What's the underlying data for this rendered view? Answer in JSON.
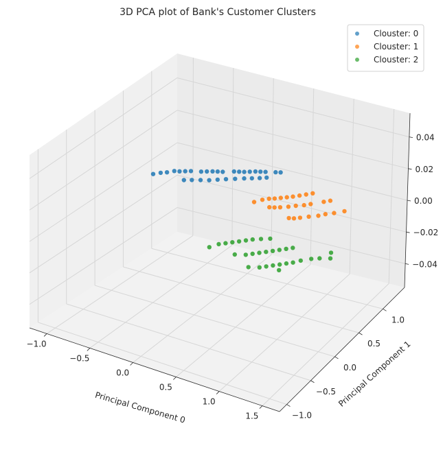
{
  "chart_data": {
    "type": "scatter",
    "projection": "3d",
    "title": "3D PCA plot of Bank's Customer Clusters",
    "xlabel": "Principal Component 0",
    "ylabel": "Principal Component 1",
    "zlabel": "",
    "xlim": [
      -1.2,
      1.7
    ],
    "ylim": [
      -1.15,
      1.45
    ],
    "zlim": [
      -0.055,
      0.055
    ],
    "xticks": [
      "−1.0",
      "−0.5",
      "0.0",
      "0.5",
      "1.0",
      "1.5"
    ],
    "yticks": [
      "−1.0",
      "−0.5",
      "0.0",
      "0.5",
      "1.0"
    ],
    "zticks": [
      "−0.04",
      "−0.02",
      "0.00",
      "0.02",
      "0.04"
    ],
    "grid": true,
    "legend_position": "top-right",
    "series": [
      {
        "name": "Clouster: 0",
        "color": "#1f77b4",
        "points": [
          [
            -0.85,
            0.9,
            0
          ],
          [
            -0.8,
            0.92,
            0
          ],
          [
            -0.75,
            0.95,
            0
          ],
          [
            -0.7,
            0.98,
            0
          ],
          [
            -0.6,
            1.02,
            0
          ],
          [
            -0.55,
            1.05,
            0
          ],
          [
            -0.5,
            1.08,
            0
          ],
          [
            -0.45,
            1.1,
            0
          ],
          [
            -0.4,
            1.12,
            0
          ],
          [
            -0.3,
            1.18,
            0
          ],
          [
            -0.25,
            1.2,
            0
          ],
          [
            -0.2,
            1.22,
            0
          ],
          [
            -0.15,
            1.25,
            0
          ],
          [
            -0.1,
            1.28,
            0
          ],
          [
            -0.05,
            1.3,
            0
          ],
          [
            0.0,
            1.32,
            0
          ],
          [
            0.1,
            1.36,
            0
          ],
          [
            0.15,
            1.38,
            0
          ],
          [
            -0.65,
            0.78,
            0
          ],
          [
            -0.58,
            0.82,
            0
          ],
          [
            -0.5,
            0.86,
            0
          ],
          [
            -0.42,
            0.9,
            0
          ],
          [
            -0.35,
            0.95,
            0
          ],
          [
            -0.28,
            1.0,
            0
          ],
          [
            -0.2,
            1.05,
            0
          ],
          [
            -0.12,
            1.1,
            0
          ],
          [
            -0.05,
            1.14,
            0
          ],
          [
            0.02,
            1.18,
            0
          ],
          [
            0.08,
            1.22,
            0
          ],
          [
            -0.95,
            0.8,
            0
          ],
          [
            -0.9,
            0.84,
            0
          ],
          [
            -1.0,
            0.74,
            0
          ]
        ]
      },
      {
        "name": "Clouster: 1",
        "color": "#ff7f0e",
        "points": [
          [
            0.3,
            0.8,
            0
          ],
          [
            0.35,
            0.85,
            0
          ],
          [
            0.4,
            0.88,
            0
          ],
          [
            0.45,
            0.92,
            0
          ],
          [
            0.5,
            0.96,
            0
          ],
          [
            0.55,
            1.0,
            0
          ],
          [
            0.65,
            1.1,
            0
          ],
          [
            0.7,
            1.15,
            0
          ],
          [
            0.45,
            0.7,
            0
          ],
          [
            0.5,
            0.72,
            0
          ],
          [
            0.55,
            0.75,
            0
          ],
          [
            0.62,
            0.8,
            0
          ],
          [
            0.68,
            0.85,
            0
          ],
          [
            0.75,
            0.9,
            0
          ],
          [
            0.8,
            0.95,
            0
          ],
          [
            0.9,
            1.05,
            0
          ],
          [
            0.75,
            0.6,
            0
          ],
          [
            0.8,
            0.62,
            0
          ],
          [
            0.85,
            0.66,
            0
          ],
          [
            0.92,
            0.72,
            0
          ],
          [
            1.0,
            0.78,
            0
          ],
          [
            1.05,
            0.84,
            0
          ],
          [
            1.12,
            0.9,
            0
          ],
          [
            1.2,
            0.98,
            0
          ],
          [
            0.25,
            0.72,
            0
          ],
          [
            0.6,
            1.05,
            0
          ],
          [
            0.95,
            1.1,
            0
          ]
        ]
      },
      {
        "name": "Clouster: 2",
        "color": "#2ca02c",
        "points": [
          [
            0.4,
            -0.2,
            0
          ],
          [
            0.45,
            -0.15,
            0
          ],
          [
            0.5,
            -0.1,
            0
          ],
          [
            0.55,
            -0.05,
            0
          ],
          [
            0.6,
            0.0,
            0
          ],
          [
            0.65,
            0.05,
            0
          ],
          [
            0.72,
            0.1,
            0
          ],
          [
            0.8,
            0.15,
            0
          ],
          [
            0.75,
            -0.25,
            0
          ],
          [
            0.8,
            -0.2,
            0
          ],
          [
            0.85,
            -0.15,
            0
          ],
          [
            0.9,
            -0.1,
            0
          ],
          [
            0.95,
            -0.05,
            0
          ],
          [
            1.0,
            0.0,
            0
          ],
          [
            1.05,
            0.05,
            0
          ],
          [
            1.1,
            0.1,
            0
          ],
          [
            1.0,
            -0.4,
            0
          ],
          [
            1.05,
            -0.35,
            0
          ],
          [
            1.1,
            -0.3,
            0
          ],
          [
            1.15,
            -0.25,
            0
          ],
          [
            1.2,
            -0.2,
            0
          ],
          [
            1.25,
            -0.15,
            0
          ],
          [
            1.3,
            -0.08,
            0
          ],
          [
            1.38,
            0.0,
            0
          ],
          [
            1.45,
            0.05,
            0
          ],
          [
            1.55,
            0.1,
            0
          ],
          [
            1.5,
            0.2,
            0
          ],
          [
            0.35,
            -0.3,
            0
          ],
          [
            0.65,
            -0.3,
            0
          ],
          [
            0.9,
            -0.45,
            0
          ],
          [
            1.2,
            -0.35,
            0
          ]
        ]
      }
    ]
  }
}
